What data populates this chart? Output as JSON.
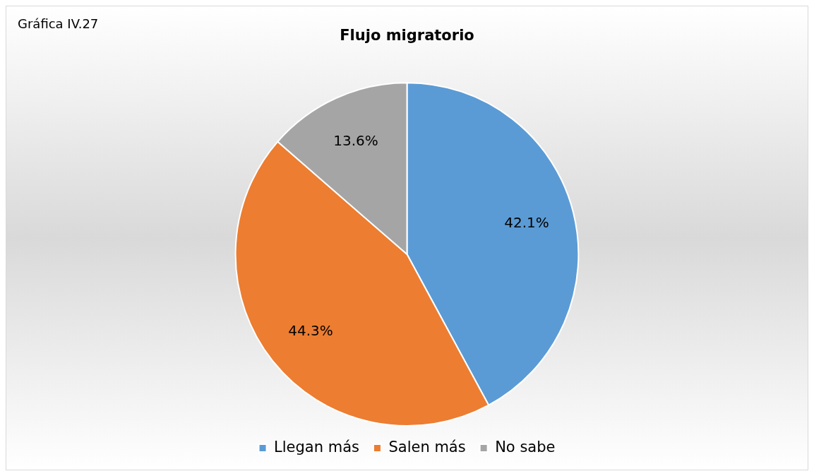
{
  "chart_data": {
    "type": "pie",
    "title": "Flujo migratorio",
    "annotations": [
      "Gráfica IV.27"
    ],
    "categories": [
      "Llegan más",
      "Salen más",
      "No sabe"
    ],
    "values": [
      42.1,
      44.3,
      13.6
    ],
    "colors": [
      "#5b9bd5",
      "#ed7d31",
      "#a5a5a5"
    ],
    "value_labels": [
      "42.1%",
      "44.3%",
      "13.6%"
    ],
    "legend": "bottom"
  }
}
